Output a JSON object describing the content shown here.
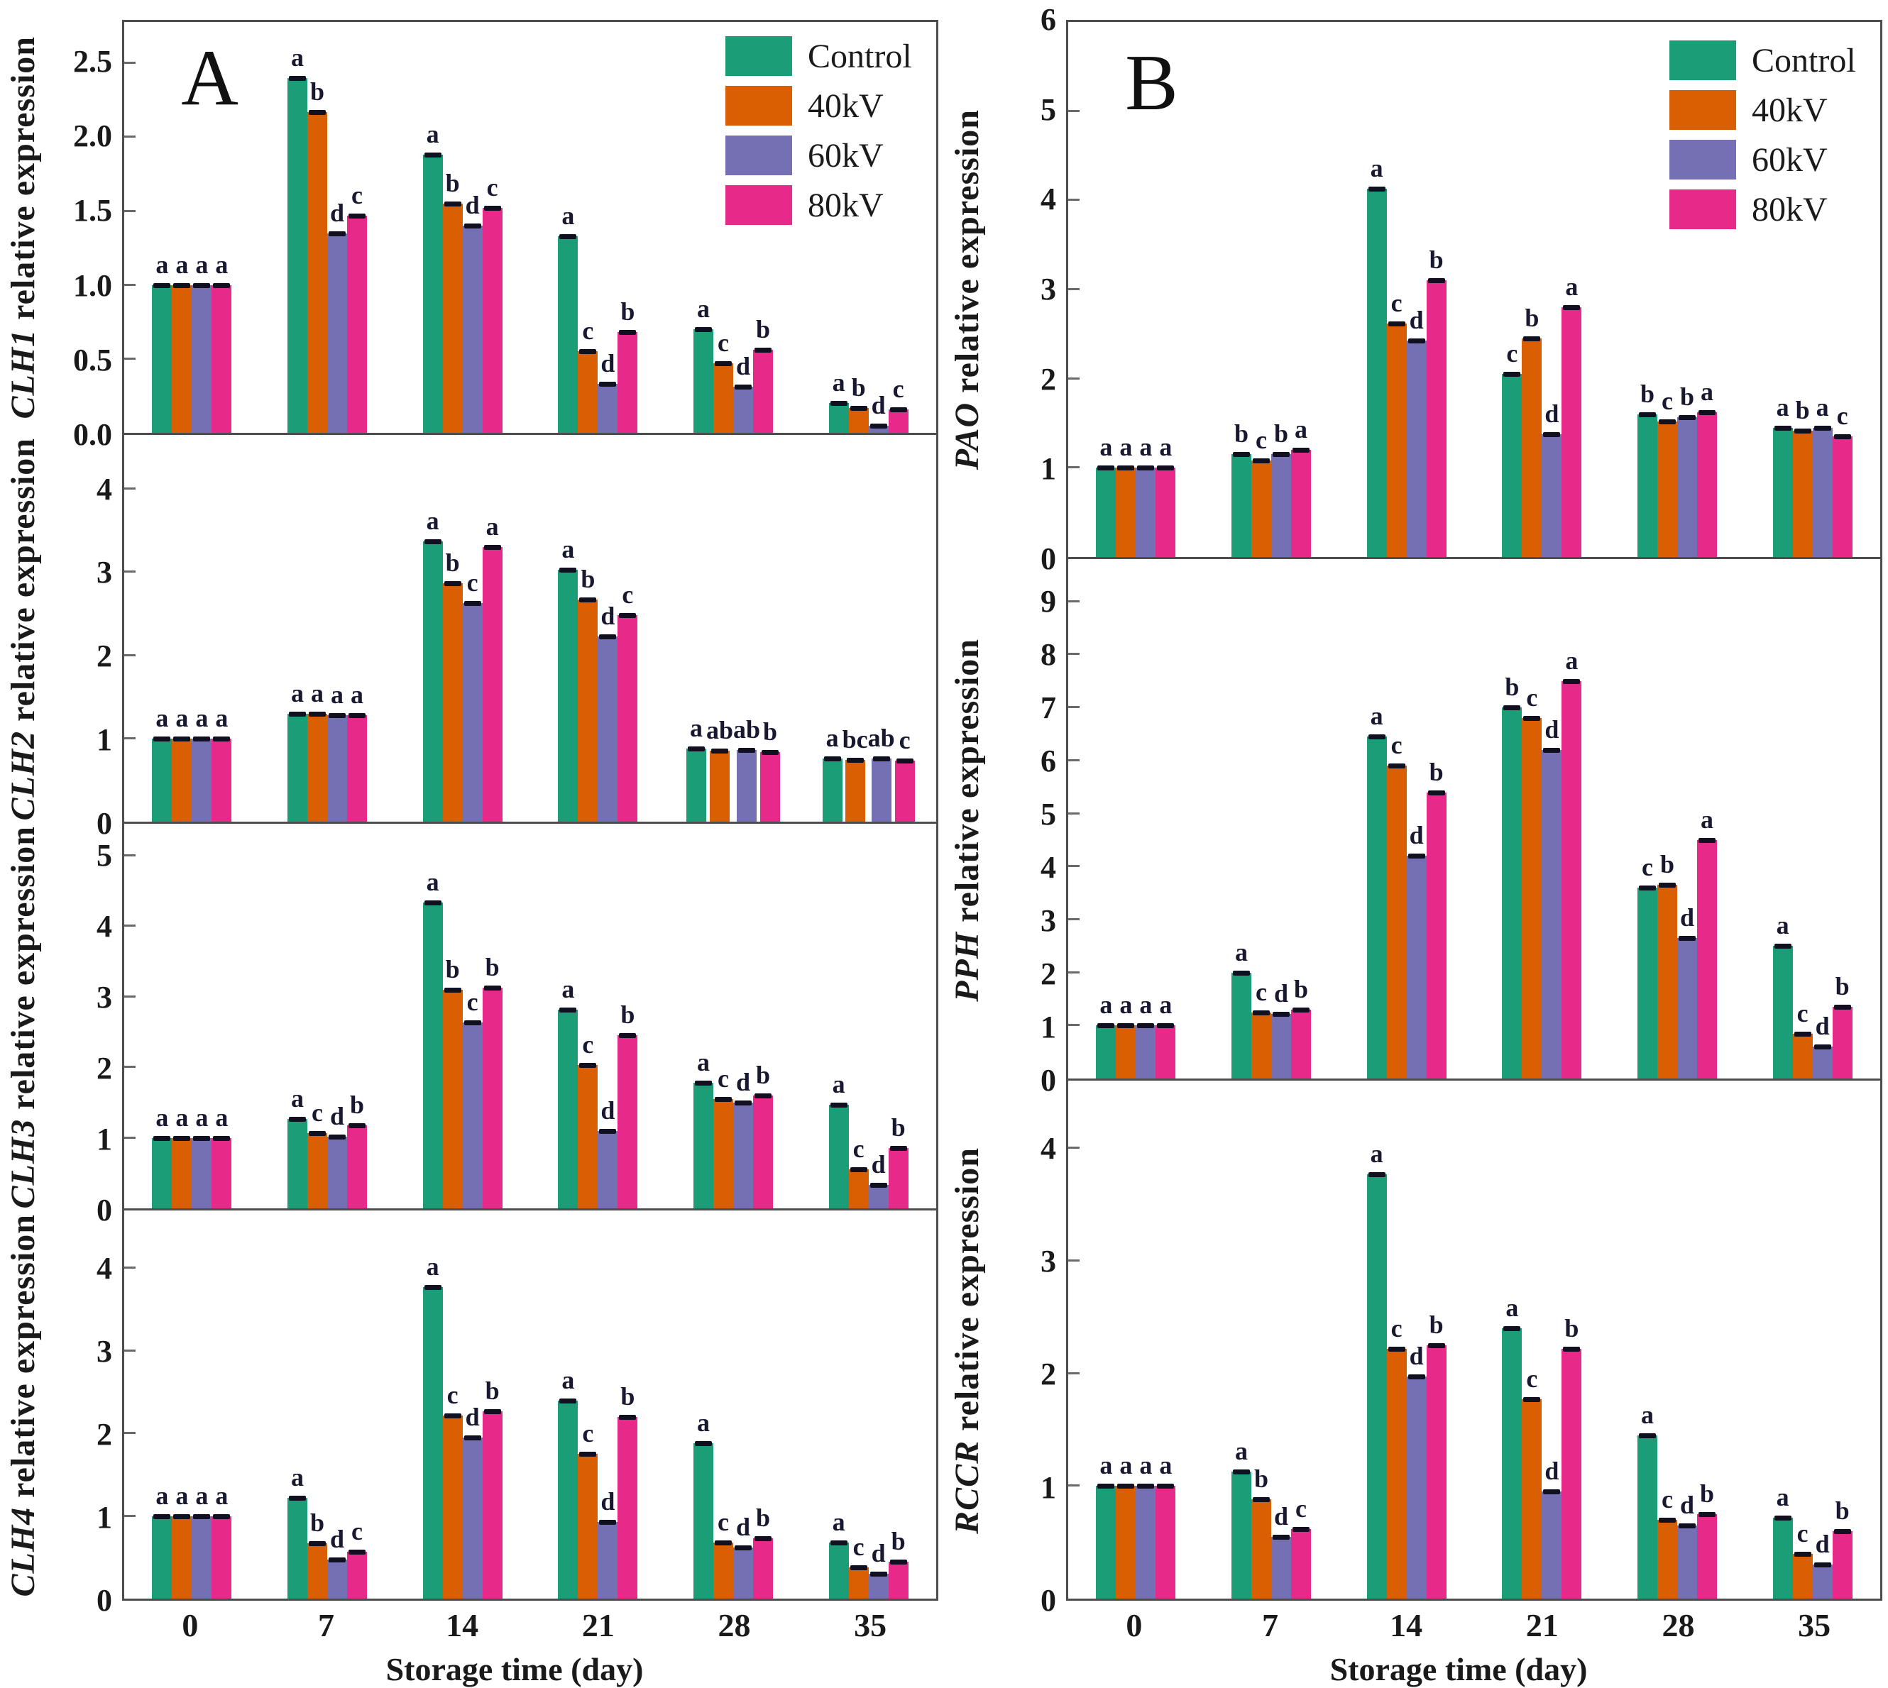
{
  "figure": {
    "panel_a_letter": "A",
    "panel_b_letter": "B",
    "xlabel": "Storage time (day)"
  },
  "legend": {
    "entries": [
      {
        "label": "Control",
        "color": "#1b9e77"
      },
      {
        "label": "40kV",
        "color": "#d95f02"
      },
      {
        "label": "60kV",
        "color": "#7570b3"
      },
      {
        "label": "80kV",
        "color": "#e7298a"
      }
    ]
  },
  "chart_data": {
    "type": "bar",
    "categories": [
      "0",
      "7",
      "14",
      "21",
      "28",
      "35"
    ],
    "xlabel": "Storage time (day)",
    "series_names": [
      "Control",
      "40kV",
      "60kV",
      "80kV"
    ],
    "colors": {
      "Control": "#1b9e77",
      "40kV": "#d95f02",
      "60kV": "#7570b3",
      "80kV": "#e7298a"
    },
    "panels": [
      {
        "label": "A",
        "chart_indexes": [
          0,
          1,
          2,
          3
        ]
      },
      {
        "label": "B",
        "chart_indexes": [
          4,
          5,
          6
        ]
      }
    ],
    "charts": [
      {
        "panel": "A",
        "gene": "CLH1",
        "ylabel_rest": " relative expression",
        "ylim": [
          0,
          2.78
        ],
        "yticks": [
          0,
          0.5,
          1.0,
          1.5,
          2.0,
          2.5
        ],
        "ytick_labels": [
          "0.0",
          "0.5",
          "1.0",
          "1.5",
          "2.0",
          "2.5"
        ],
        "series": [
          {
            "name": "Control",
            "values": [
              1.0,
              2.4,
              1.88,
              1.33,
              0.7,
              0.2
            ]
          },
          {
            "name": "40kV",
            "values": [
              1.0,
              2.17,
              1.55,
              0.55,
              0.47,
              0.17
            ]
          },
          {
            "name": "60kV",
            "values": [
              1.0,
              1.35,
              1.4,
              0.33,
              0.31,
              0.05
            ]
          },
          {
            "name": "80kV",
            "values": [
              1.0,
              1.47,
              1.52,
              0.68,
              0.56,
              0.16
            ]
          }
        ],
        "letters": [
          [
            "a",
            "a",
            "a",
            "a"
          ],
          [
            "a",
            "b",
            "d",
            "c"
          ],
          [
            "a",
            "b",
            "d",
            "c"
          ],
          [
            "a",
            "c",
            "d",
            "b"
          ],
          [
            "a",
            "c",
            "d",
            "b"
          ],
          [
            "a",
            "b",
            "d",
            "c"
          ]
        ]
      },
      {
        "panel": "A",
        "gene": "CLH2",
        "ylabel_rest": " relative expression",
        "ylim": [
          0,
          4.65
        ],
        "yticks": [
          0,
          1,
          2,
          3,
          4
        ],
        "ytick_labels": [
          "0",
          "1",
          "2",
          "3",
          "4"
        ],
        "series": [
          {
            "name": "Control",
            "values": [
              1.0,
              1.3,
              3.37,
              3.03,
              0.88,
              0.76
            ]
          },
          {
            "name": "40kV",
            "values": [
              1.0,
              1.3,
              2.87,
              2.67,
              0.85,
              0.74
            ]
          },
          {
            "name": "60kV",
            "values": [
              1.0,
              1.28,
              2.63,
              2.23,
              0.86,
              0.76
            ]
          },
          {
            "name": "80kV",
            "values": [
              1.0,
              1.28,
              3.3,
              2.48,
              0.84,
              0.73
            ]
          }
        ],
        "letters": [
          [
            "a",
            "a",
            "a",
            "a"
          ],
          [
            "a",
            "a",
            "a",
            "a"
          ],
          [
            "a",
            "b",
            "c",
            "a"
          ],
          [
            "a",
            "b",
            "d",
            "c"
          ],
          [
            "a",
            "ab",
            "ab",
            "b"
          ],
          [
            "a",
            "bc",
            "ab",
            "c"
          ]
        ]
      },
      {
        "panel": "A",
        "gene": "CLH3",
        "ylabel_rest": " relative expression",
        "ylim": [
          0,
          5.45
        ],
        "yticks": [
          0,
          1,
          2,
          3,
          4,
          5
        ],
        "ytick_labels": [
          "0",
          "1",
          "2",
          "3",
          "4",
          "5"
        ],
        "series": [
          {
            "name": "Control",
            "values": [
              1.0,
              1.27,
              4.33,
              2.82,
              1.78,
              1.47
            ]
          },
          {
            "name": "40kV",
            "values": [
              1.0,
              1.07,
              3.1,
              2.03,
              1.55,
              0.55
            ]
          },
          {
            "name": "60kV",
            "values": [
              1.0,
              1.02,
              2.63,
              1.1,
              1.5,
              0.33
            ]
          },
          {
            "name": "80kV",
            "values": [
              1.0,
              1.18,
              3.13,
              2.45,
              1.6,
              0.85
            ]
          }
        ],
        "letters": [
          [
            "a",
            "a",
            "a",
            "a"
          ],
          [
            "a",
            "c",
            "d",
            "b"
          ],
          [
            "a",
            "b",
            "c",
            "b"
          ],
          [
            "a",
            "c",
            "d",
            "b"
          ],
          [
            "a",
            "c",
            "d",
            "b"
          ],
          [
            "a",
            "c",
            "d",
            "b"
          ]
        ]
      },
      {
        "panel": "A",
        "gene": "CLH4",
        "ylabel_rest": " relative expression",
        "ylim": [
          0,
          4.7
        ],
        "yticks": [
          0,
          1,
          2,
          3,
          4
        ],
        "ytick_labels": [
          "0",
          "1",
          "2",
          "3",
          "4"
        ],
        "series": [
          {
            "name": "Control",
            "values": [
              1.0,
              1.22,
              3.77,
              2.4,
              1.88,
              0.68
            ]
          },
          {
            "name": "40kV",
            "values": [
              1.0,
              0.67,
              2.22,
              1.75,
              0.68,
              0.38
            ]
          },
          {
            "name": "60kV",
            "values": [
              1.0,
              0.47,
              1.95,
              0.93,
              0.62,
              0.3
            ]
          },
          {
            "name": "80kV",
            "values": [
              1.0,
              0.57,
              2.27,
              2.2,
              0.73,
              0.45
            ]
          }
        ],
        "letters": [
          [
            "a",
            "a",
            "a",
            "a"
          ],
          [
            "a",
            "b",
            "d",
            "c"
          ],
          [
            "a",
            "c",
            "d",
            "b"
          ],
          [
            "a",
            "c",
            "d",
            "b"
          ],
          [
            "a",
            "c",
            "d",
            "b"
          ],
          [
            "a",
            "c",
            "d",
            "b"
          ]
        ]
      },
      {
        "panel": "B",
        "gene": "PAO",
        "ylabel_rest": " relative expression",
        "ylim": [
          0,
          6.0
        ],
        "yticks": [
          0,
          1,
          2,
          3,
          4,
          5,
          6
        ],
        "ytick_labels": [
          "0",
          "1",
          "2",
          "3",
          "4",
          "5",
          "6"
        ],
        "series": [
          {
            "name": "Control",
            "values": [
              1.0,
              1.15,
              4.13,
              2.05,
              1.6,
              1.45
            ]
          },
          {
            "name": "40kV",
            "values": [
              1.0,
              1.08,
              2.62,
              2.45,
              1.52,
              1.42
            ]
          },
          {
            "name": "60kV",
            "values": [
              1.0,
              1.15,
              2.43,
              1.38,
              1.57,
              1.45
            ]
          },
          {
            "name": "80kV",
            "values": [
              1.0,
              1.2,
              3.1,
              2.8,
              1.62,
              1.35
            ]
          }
        ],
        "letters": [
          [
            "a",
            "a",
            "a",
            "a"
          ],
          [
            "b",
            "c",
            "b",
            "a"
          ],
          [
            "a",
            "c",
            "d",
            "b"
          ],
          [
            "c",
            "b",
            "d",
            "a"
          ],
          [
            "b",
            "c",
            "b",
            "a"
          ],
          [
            "a",
            "b",
            "a",
            "c"
          ]
        ]
      },
      {
        "panel": "B",
        "gene": "PPH",
        "ylabel_rest": " relative expression",
        "ylim": [
          0,
          9.8
        ],
        "yticks": [
          0,
          1,
          2,
          3,
          4,
          5,
          6,
          7,
          8,
          9
        ],
        "ytick_labels": [
          "0",
          "1",
          "2",
          "3",
          "4",
          "5",
          "6",
          "7",
          "8",
          "9"
        ],
        "series": [
          {
            "name": "Control",
            "values": [
              1.0,
              2.0,
              6.45,
              7.0,
              3.6,
              2.5
            ]
          },
          {
            "name": "40kV",
            "values": [
              1.0,
              1.25,
              5.9,
              6.8,
              3.65,
              0.85
            ]
          },
          {
            "name": "60kV",
            "values": [
              1.0,
              1.22,
              4.2,
              6.2,
              2.65,
              0.6
            ]
          },
          {
            "name": "80kV",
            "values": [
              1.0,
              1.3,
              5.4,
              7.5,
              4.5,
              1.35
            ]
          }
        ],
        "letters": [
          [
            "a",
            "a",
            "a",
            "a"
          ],
          [
            "a",
            "c",
            "d",
            "b"
          ],
          [
            "a",
            "c",
            "d",
            "b"
          ],
          [
            "b",
            "c",
            "d",
            "a"
          ],
          [
            "c",
            "b",
            "d",
            "a"
          ],
          [
            "a",
            "c",
            "d",
            "b"
          ]
        ]
      },
      {
        "panel": "B",
        "gene": "RCCR",
        "ylabel_rest": " relative expression",
        "ylim": [
          0,
          4.6
        ],
        "yticks": [
          0,
          1,
          2,
          3,
          4
        ],
        "ytick_labels": [
          "0",
          "1",
          "2",
          "3",
          "4"
        ],
        "series": [
          {
            "name": "Control",
            "values": [
              1.0,
              1.13,
              3.77,
              2.4,
              1.45,
              0.72
            ]
          },
          {
            "name": "40kV",
            "values": [
              1.0,
              0.88,
              2.22,
              1.77,
              0.7,
              0.4
            ]
          },
          {
            "name": "60kV",
            "values": [
              1.0,
              0.55,
              1.97,
              0.95,
              0.65,
              0.3
            ]
          },
          {
            "name": "80kV",
            "values": [
              1.0,
              0.62,
              2.25,
              2.22,
              0.75,
              0.6
            ]
          }
        ],
        "letters": [
          [
            "a",
            "a",
            "a",
            "a"
          ],
          [
            "a",
            "b",
            "d",
            "c"
          ],
          [
            "a",
            "c",
            "d",
            "b"
          ],
          [
            "a",
            "c",
            "d",
            "b"
          ],
          [
            "a",
            "c",
            "d",
            "b"
          ],
          [
            "a",
            "c",
            "d",
            "b"
          ]
        ]
      }
    ]
  }
}
